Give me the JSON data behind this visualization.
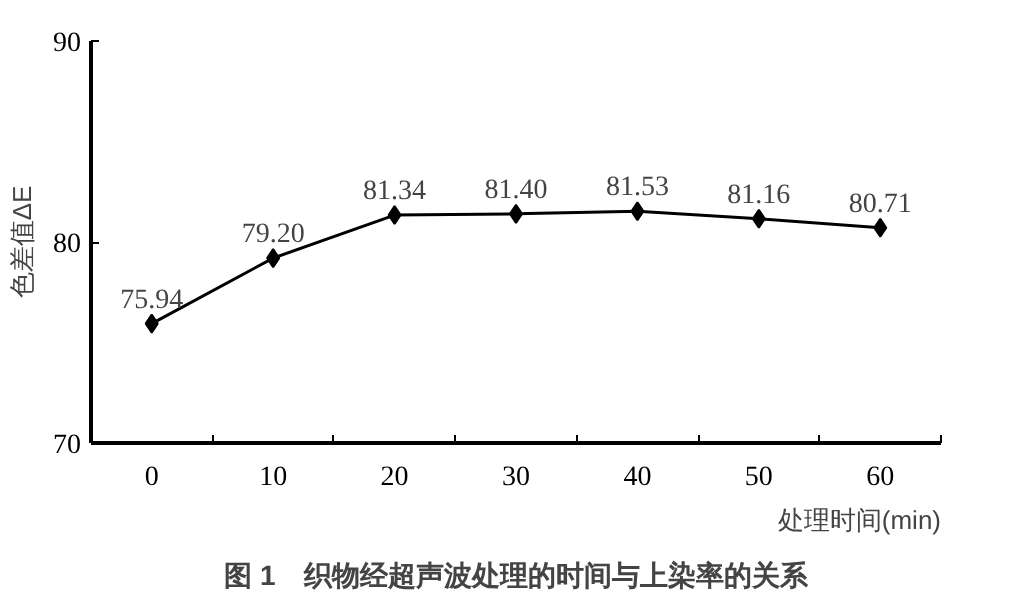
{
  "chart_data": {
    "type": "line",
    "categories": [
      "0",
      "10",
      "20",
      "30",
      "40",
      "50",
      "60"
    ],
    "series": [
      {
        "color": "#000000",
        "values": [
          75.94,
          79.2,
          81.34,
          81.4,
          81.53,
          81.16,
          80.71
        ],
        "value_labels": [
          "75.94",
          "79.20",
          "81.34",
          "81.40",
          "81.53",
          "81.16",
          "80.71"
        ]
      }
    ],
    "ylim": [
      70,
      90
    ],
    "yticks": [
      70,
      80,
      90
    ],
    "ylabel": "色差值ΔE",
    "xlabel": "处理时间(min)",
    "marker": "diamond",
    "grid": false,
    "annotations": [
      "图 1　织物经超声波处理的时间与上染率的关系"
    ]
  }
}
